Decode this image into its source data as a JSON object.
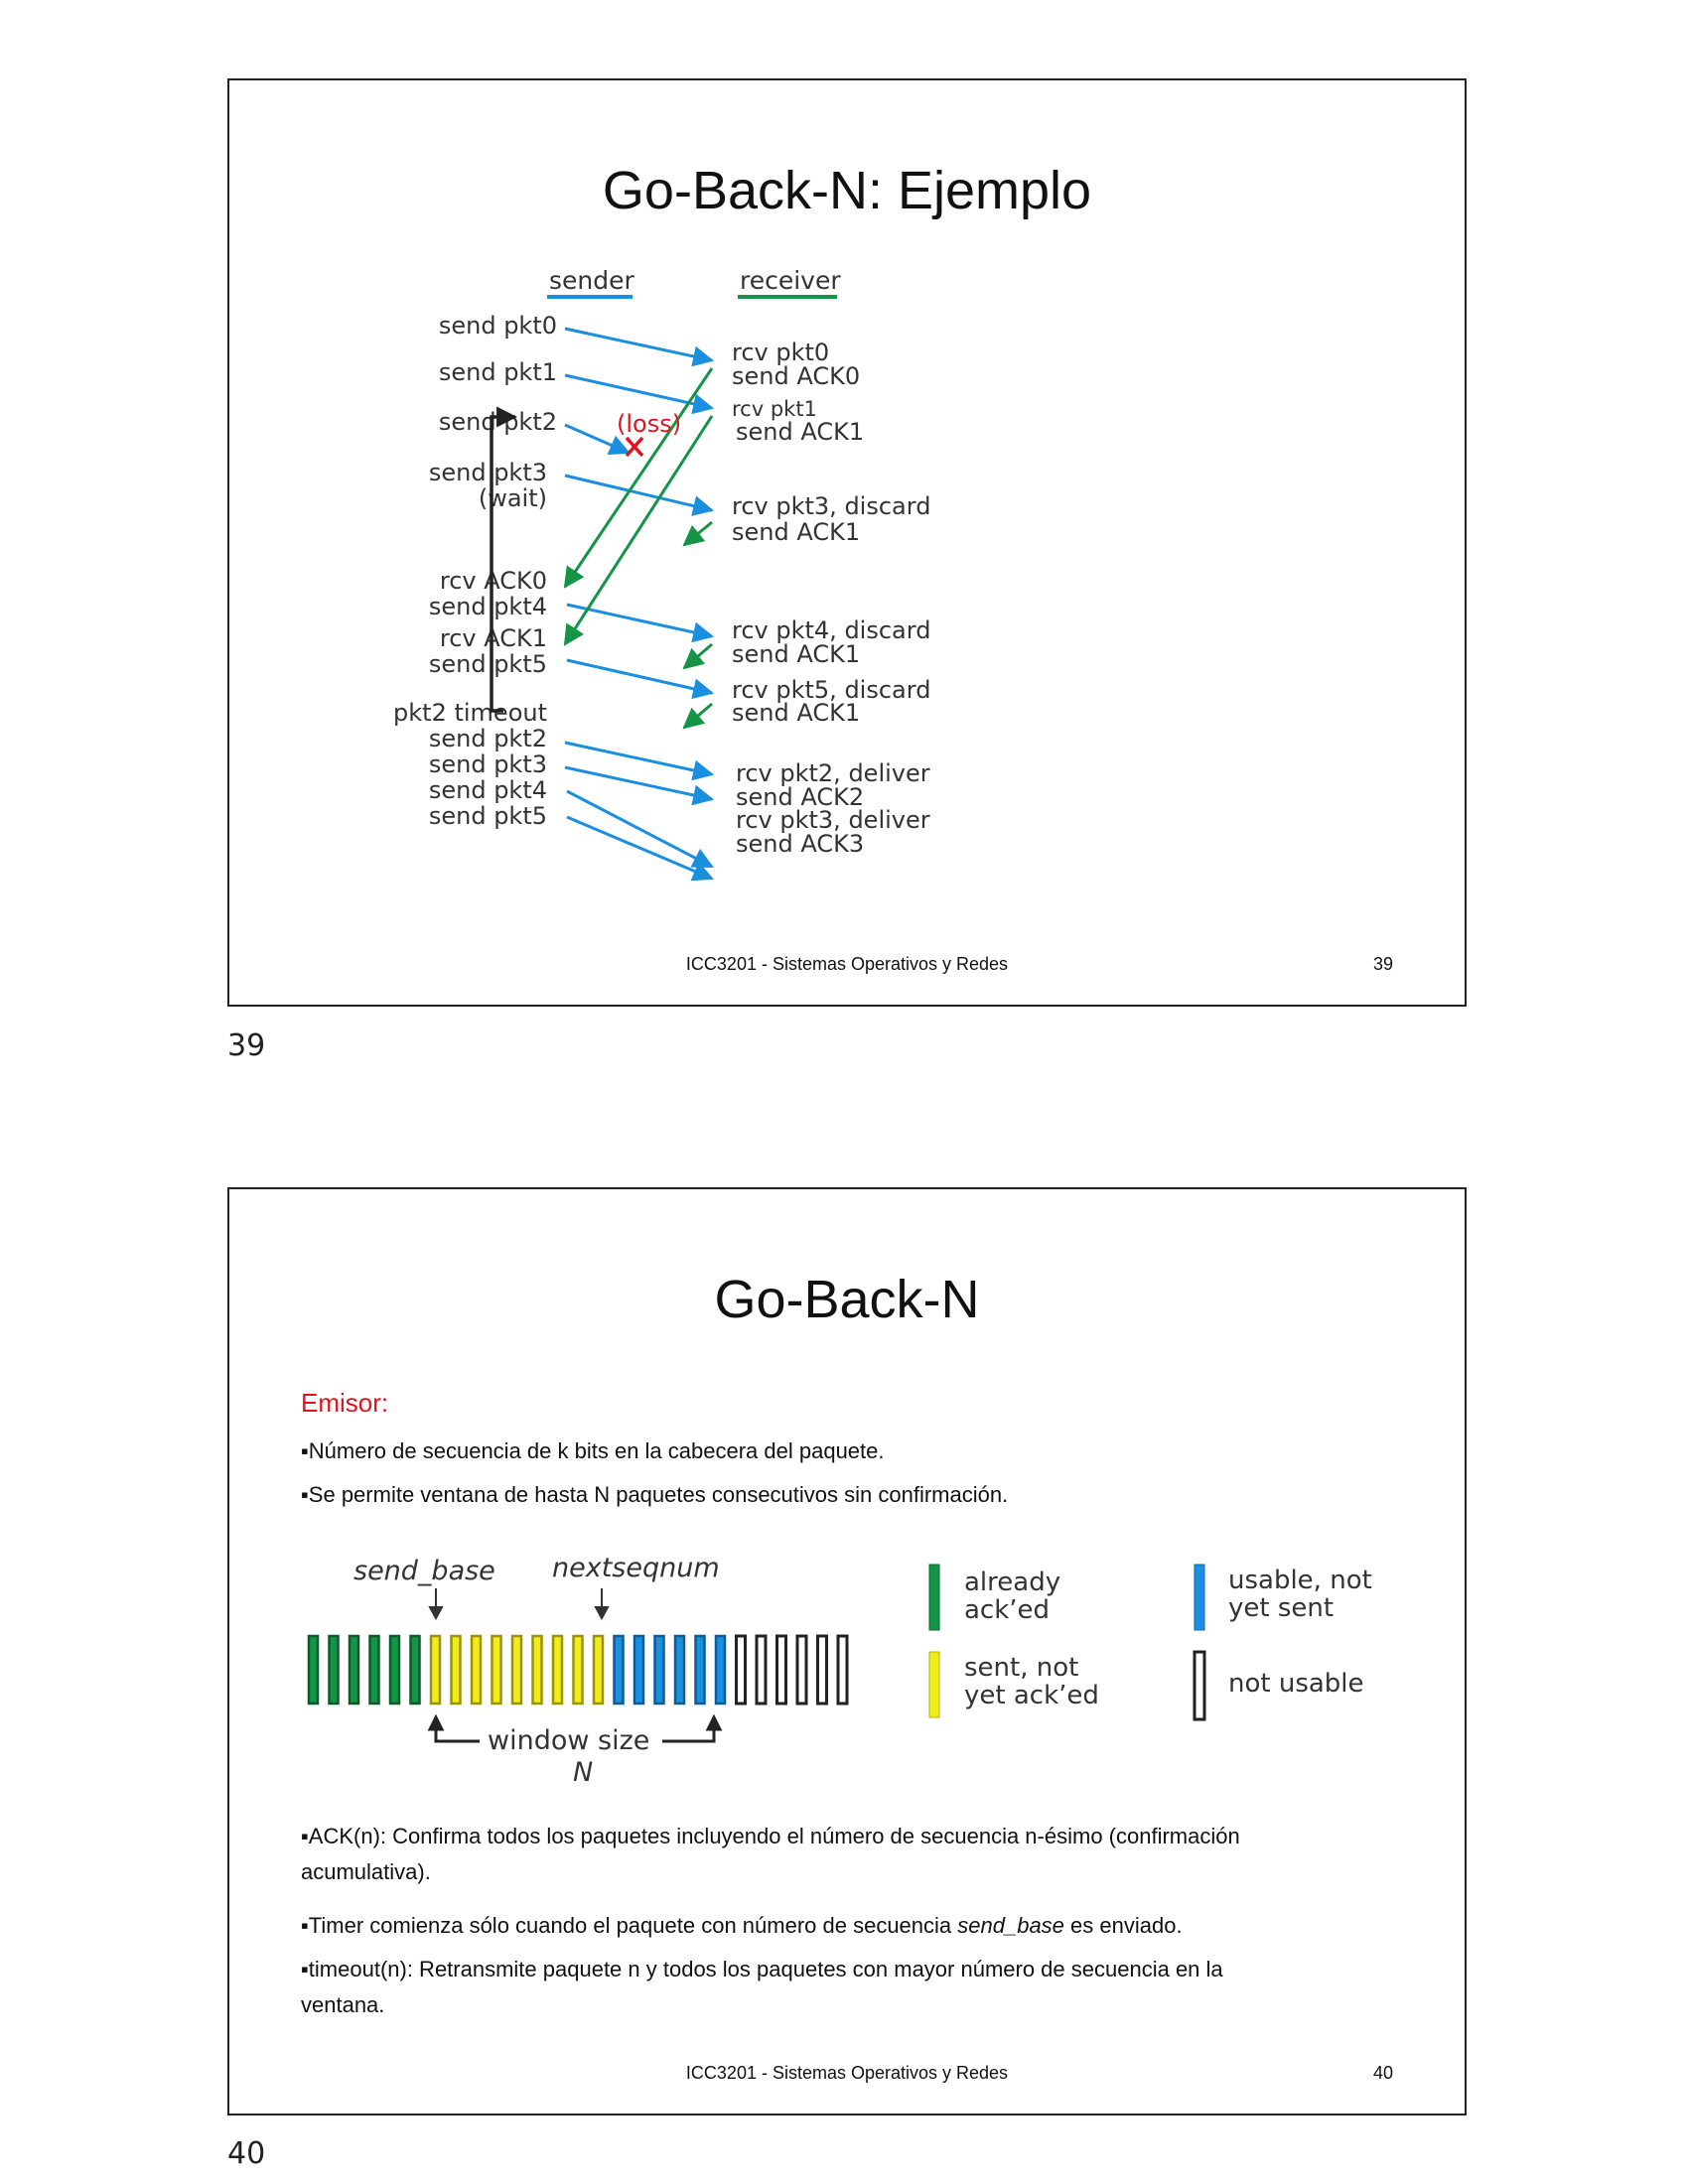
{
  "slide1": {
    "title": "Go-Back-N: Ejemplo",
    "sender_label": "sender",
    "receiver_label": "receiver",
    "loss_label": "(loss)",
    "sender_events": [
      "send pkt0",
      "send pkt1",
      "send pkt2",
      "send pkt3",
      "(wait)",
      "rcv ACK0",
      "send pkt4",
      "rcv ACK1",
      "send pkt5",
      "pkt2 timeout",
      "send pkt2",
      "send pkt3",
      "send pkt4",
      "send pkt5"
    ],
    "receiver_events": [
      "rcv pkt0",
      "send ACK0",
      "rcv pkt1",
      "send ACK1",
      "rcv pkt3, discard",
      "send ACK1",
      "rcv pkt4, discard",
      "send ACK1",
      "rcv pkt5, discard",
      "send ACK1",
      "rcv pkt2, deliver",
      "send ACK2",
      "rcv pkt3, deliver",
      "send ACK3"
    ],
    "footer": "ICC3201 - Sistemas Operativos y Redes",
    "number": "39",
    "colors": {
      "data_arrow": "#1a8fe0",
      "ack_arrow": "#139447",
      "loss": "#e0141e",
      "timeout_bracket": "#222222"
    }
  },
  "page_number_1": "39",
  "slide2": {
    "title": "Go-Back-N",
    "emisor": "Emisor:",
    "bullets": [
      "▪Número de secuencia de k bits en la cabecera del paquete.",
      "▪Se permite ventana de hasta N paquetes consecutivos sin confirmación."
    ],
    "diagram": {
      "send_base": "send_base",
      "nextseqnum": "nextseqnum",
      "window_size": "window size",
      "n_label": "N",
      "slots": {
        "already_acked": 6,
        "sent_not_acked": 9,
        "usable_not_sent": 6,
        "not_usable": 6
      },
      "legend": [
        {
          "line1": "already",
          "line2": "ack’ed",
          "color": "#139447"
        },
        {
          "line1": "sent, not",
          "line2": "yet ack’ed",
          "color": "#f2ec1a"
        },
        {
          "line1": "usable, not",
          "line2": "yet sent",
          "color": "#1a8fe0"
        },
        {
          "line1": "not usable",
          "line2": "",
          "color": "#ffffff"
        }
      ]
    },
    "bullet_ack": "▪ACK(n): Confirma todos los paquetes incluyendo el número de secuencia n-ésimo (confirmación",
    "bullet_ack_cont": "acumulativa).",
    "bullet_timer_pre": "▪Timer comienza sólo cuando el paquete con número de secuencia ",
    "bullet_timer_em": "send_base",
    "bullet_timer_post": " es enviado.",
    "bullet_timeout": "▪timeout(n): Retransmite paquete n y todos los paquetes con mayor número de secuencia en la",
    "bullet_timeout_cont": "ventana.",
    "footer": "ICC3201 - Sistemas Operativos y Redes",
    "number": "40"
  },
  "page_number_2": "40"
}
